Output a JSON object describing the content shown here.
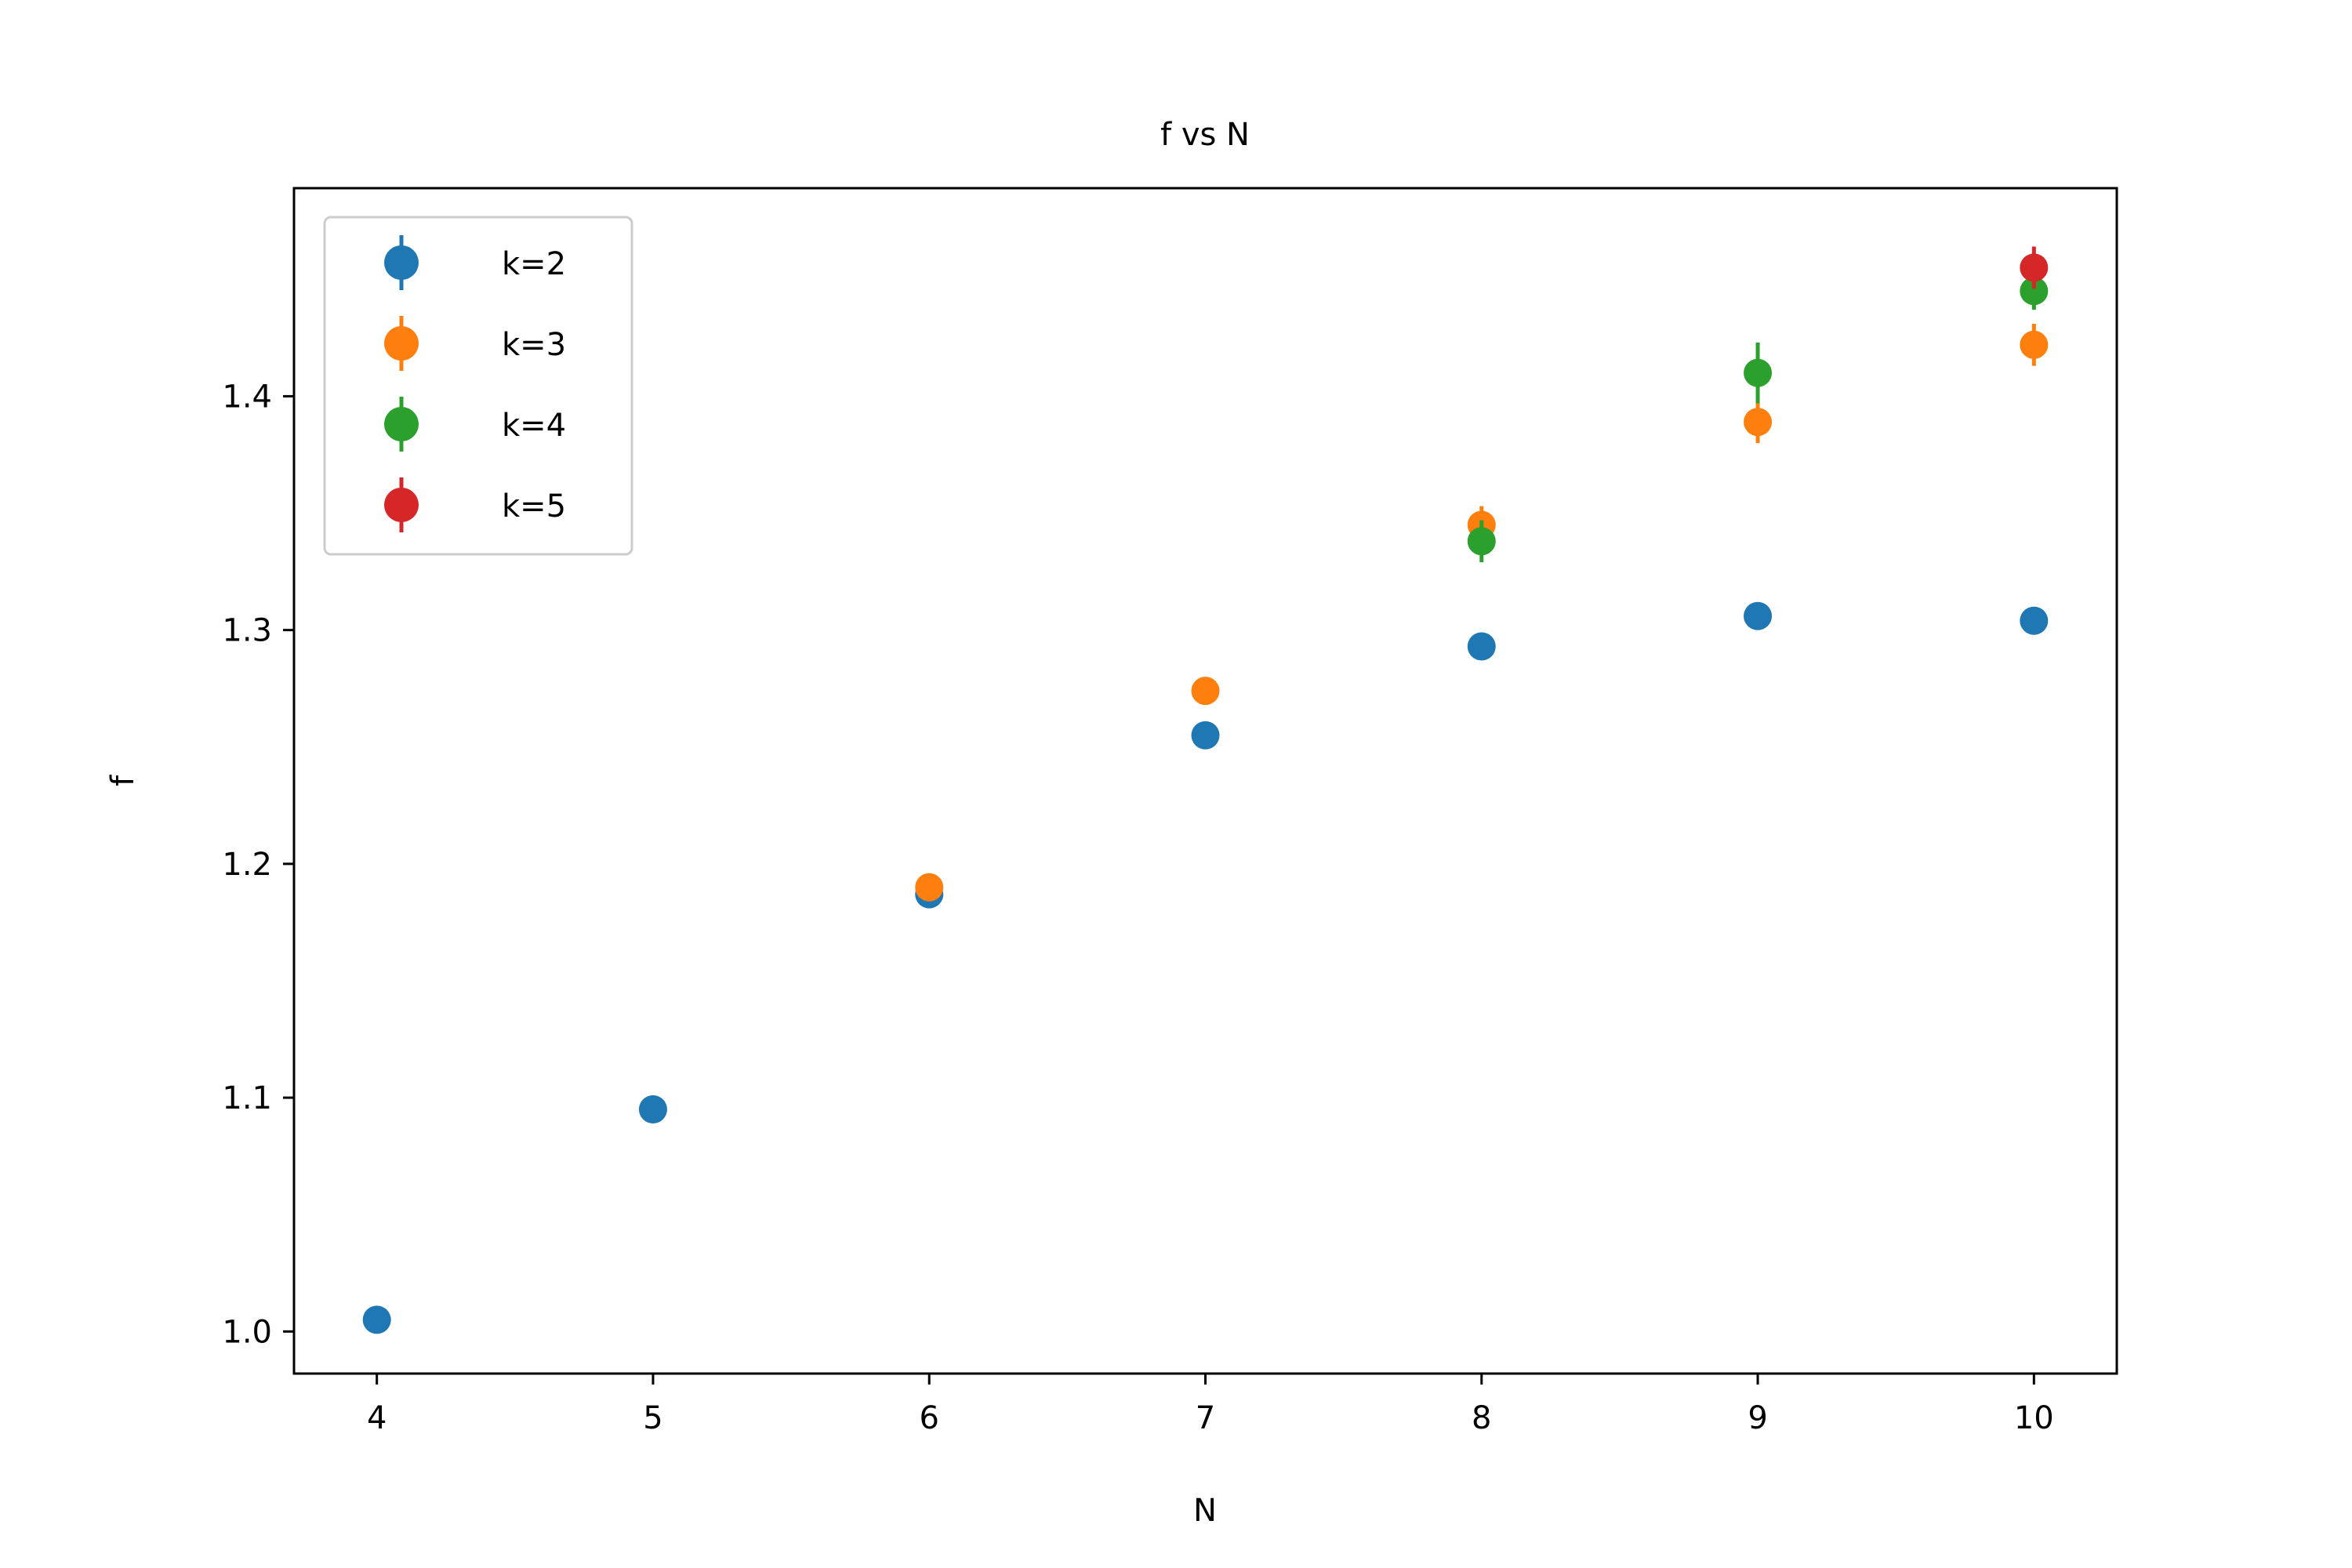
{
  "chart_data": {
    "type": "scatter",
    "title": "f vs N",
    "xlabel": "N",
    "ylabel": "f",
    "xlim": [
      3.7,
      10.3
    ],
    "ylim": [
      0.982,
      1.489
    ],
    "xticks": [
      4,
      5,
      6,
      7,
      8,
      9,
      10
    ],
    "xtick_labels": [
      "4",
      "5",
      "6",
      "7",
      "8",
      "9",
      "10"
    ],
    "yticks": [
      1.0,
      1.1,
      1.2,
      1.3,
      1.4
    ],
    "ytick_labels": [
      "1.0",
      "1.1",
      "1.2",
      "1.3",
      "1.4"
    ],
    "grid": false,
    "legend_position": "upper-left",
    "series": [
      {
        "name": "k=2",
        "color": "#1f77b4",
        "x": [
          4,
          5,
          6,
          7,
          8,
          9,
          10
        ],
        "y": [
          1.005,
          1.095,
          1.187,
          1.255,
          1.293,
          1.306,
          1.304
        ],
        "yerr": [
          0.001,
          0.002,
          0.003,
          0.003,
          0.003,
          0.003,
          0.003
        ]
      },
      {
        "name": "k=3",
        "color": "#ff7f0e",
        "x": [
          6,
          7,
          8,
          9,
          10
        ],
        "y": [
          1.19,
          1.274,
          1.345,
          1.389,
          1.422
        ],
        "yerr": [
          0.003,
          0.004,
          0.008,
          0.009,
          0.009
        ]
      },
      {
        "name": "k=4",
        "color": "#2ca02c",
        "x": [
          8,
          9,
          10
        ],
        "y": [
          1.338,
          1.41,
          1.445
        ],
        "yerr": [
          0.009,
          0.013,
          0.008
        ]
      },
      {
        "name": "k=5",
        "color": "#d62728",
        "x": [
          10
        ],
        "y": [
          1.455
        ],
        "yerr": [
          0.009
        ]
      }
    ]
  }
}
